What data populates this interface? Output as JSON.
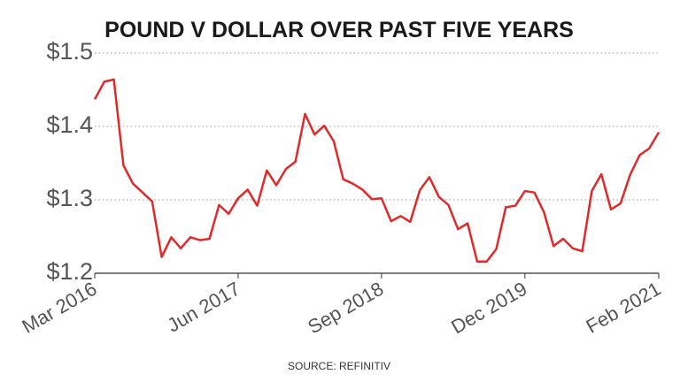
{
  "chart_data": {
    "type": "line",
    "title": "POUND V DOLLAR OVER PAST FIVE YEARS",
    "source": "SOURCE: REFINITIV",
    "categories": [
      "Mar 2016",
      null,
      null,
      null,
      null,
      null,
      null,
      null,
      null,
      null,
      null,
      null,
      null,
      null,
      null,
      "Jun 2017",
      null,
      null,
      null,
      null,
      null,
      null,
      null,
      null,
      null,
      null,
      null,
      null,
      null,
      null,
      "Sep 2018",
      null,
      null,
      null,
      null,
      null,
      null,
      null,
      null,
      null,
      null,
      null,
      null,
      null,
      null,
      "Dec 2019",
      null,
      null,
      null,
      null,
      null,
      null,
      null,
      null,
      null,
      null,
      null,
      null,
      null,
      "Feb 2021"
    ],
    "values": [
      1.437,
      1.461,
      1.464,
      1.347,
      1.322,
      1.31,
      1.298,
      1.222,
      1.249,
      1.234,
      1.249,
      1.245,
      1.247,
      1.293,
      1.281,
      1.302,
      1.314,
      1.292,
      1.34,
      1.32,
      1.342,
      1.352,
      1.417,
      1.389,
      1.401,
      1.38,
      1.328,
      1.322,
      1.314,
      1.301,
      1.302,
      1.271,
      1.278,
      1.27,
      1.313,
      1.331,
      1.304,
      1.293,
      1.26,
      1.268,
      1.216,
      1.216,
      1.233,
      1.29,
      1.292,
      1.312,
      1.31,
      1.283,
      1.237,
      1.247,
      1.234,
      1.23,
      1.312,
      1.335,
      1.287,
      1.295,
      1.334,
      1.361,
      1.37,
      1.392
    ],
    "color": "#e02a2a",
    "ylim": [
      1.2,
      1.5
    ],
    "yticks": [
      {
        "value": 1.2,
        "label": "$1.2"
      },
      {
        "value": 1.3,
        "label": "$1.3"
      },
      {
        "value": 1.4,
        "label": "$1.4"
      },
      {
        "value": 1.5,
        "label": "$1.5"
      }
    ],
    "grid": true
  }
}
